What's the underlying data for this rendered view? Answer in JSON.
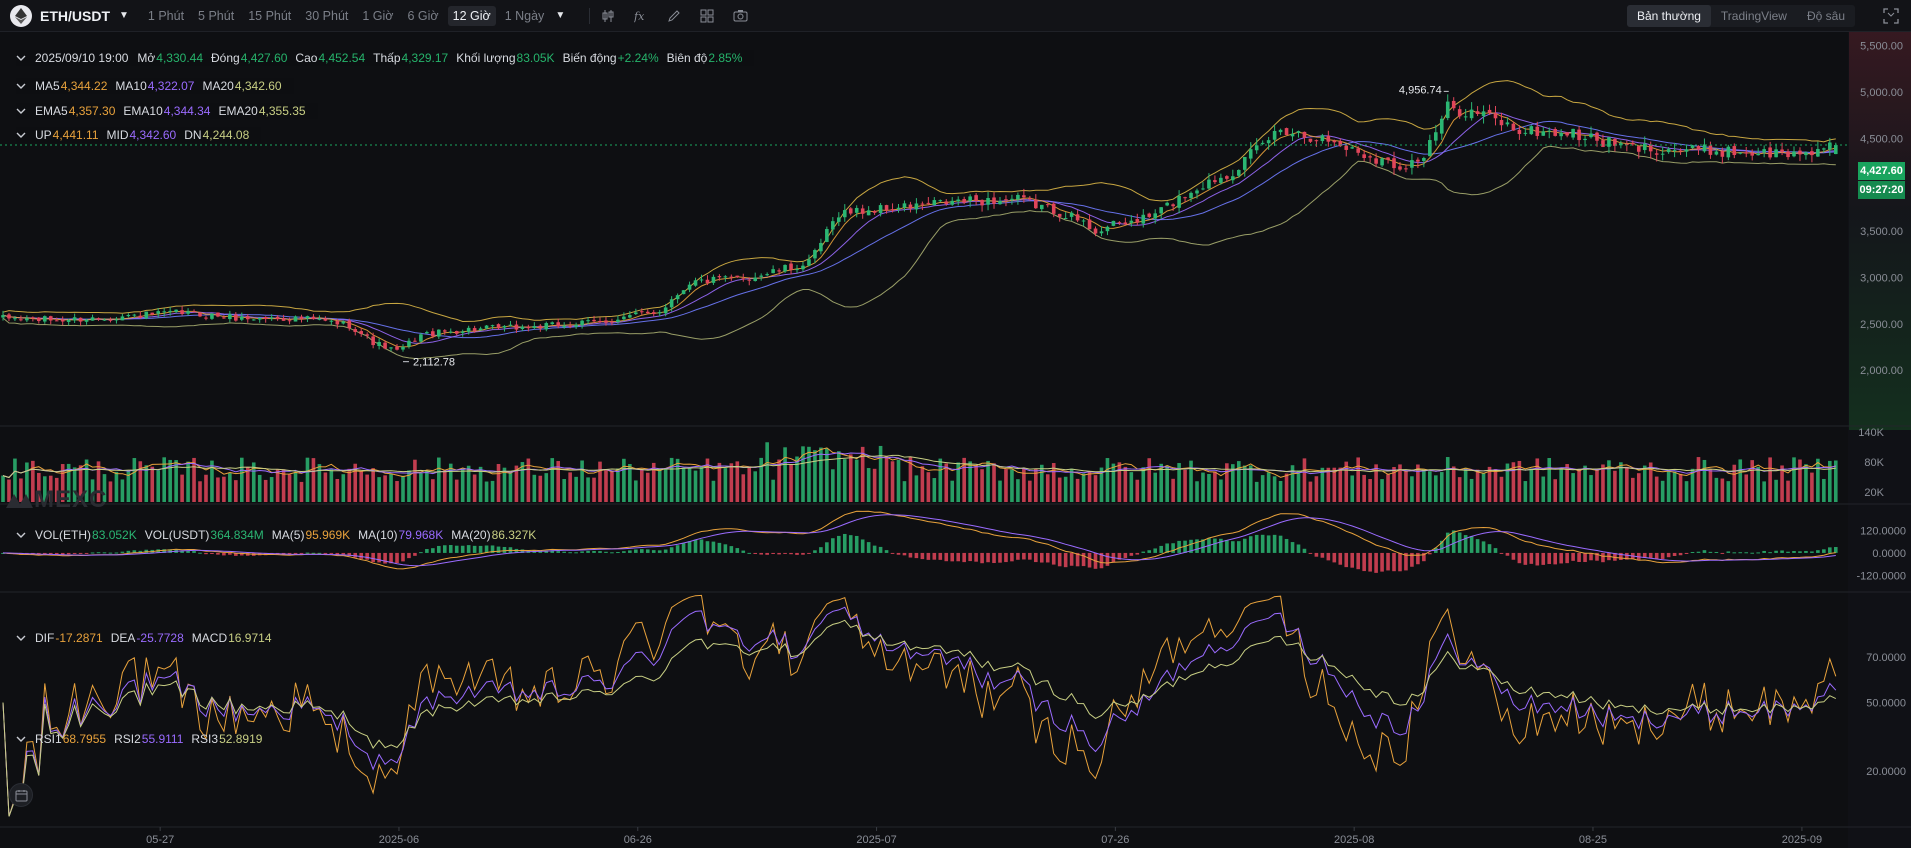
{
  "toolbar": {
    "symbol": "ETH/USDT",
    "intervals": [
      "1 Phút",
      "5 Phút",
      "15 Phút",
      "30 Phút",
      "1 Giờ",
      "6 Giờ",
      "12 Giờ",
      "1 Ngày"
    ],
    "active_interval": "12 Giờ",
    "tool_icons": [
      "candle-type-icon",
      "indicator-icon",
      "draw-icon",
      "layout-icon",
      "camera-icon"
    ],
    "views": [
      "Bản thường",
      "TradingView",
      "Độ sâu"
    ],
    "active_view": "Bản thường"
  },
  "ohlc": {
    "date": "2025/09/10 19:00",
    "open_label": "Mở",
    "open": "4,330.44",
    "close_label": "Đóng",
    "close": "4,427.60",
    "high_label": "Cao",
    "high": "4,452.54",
    "low_label": "Thấp",
    "low": "4,329.17",
    "volume_label": "Khối lượng",
    "volume": "83.05K",
    "change_label": "Biến động",
    "change": "+2.24%",
    "amplitude_label": "Biên độ",
    "amplitude": "2.85%"
  },
  "ma": {
    "ma5_label": "MA5",
    "ma5": "4,344.22",
    "ma10_label": "MA10",
    "ma10": "4,322.07",
    "ma20_label": "MA20",
    "ma20": "4,342.60"
  },
  "ema": {
    "ema5_label": "EMA5",
    "ema5": "4,357.30",
    "ema10_label": "EMA10",
    "ema10": "4,344.34",
    "ema20_label": "EMA20",
    "ema20": "4,355.35"
  },
  "boll": {
    "up_label": "UP",
    "up": "4,441.11",
    "mid_label": "MID",
    "mid": "4,342.60",
    "dn_label": "DN",
    "dn": "4,244.08"
  },
  "vol": {
    "eth_label": "VOL(ETH)",
    "eth": "83.052K",
    "usdt_label": "VOL(USDT)",
    "usdt": "364.834M",
    "ma5_label": "MA(5)",
    "ma5": "95.969K",
    "ma10_label": "MA(10)",
    "ma10": "79.968K",
    "ma20_label": "MA(20)",
    "ma20": "86.327K"
  },
  "macd": {
    "dif_label": "DIF",
    "dif": "-17.2871",
    "dea_label": "DEA",
    "dea": "-25.7728",
    "macd_label": "MACD",
    "macd": "16.9714"
  },
  "rsi": {
    "rsi1_label": "RSI1",
    "rsi1": "68.7955",
    "rsi2_label": "RSI2",
    "rsi2": "55.9111",
    "rsi3_label": "RSI3",
    "rsi3": "52.8919"
  },
  "price_tag": {
    "price": "4,427.60",
    "countdown": "09:27:20"
  },
  "watermark": "MEXC",
  "colors": {
    "up": "#2bb673",
    "down": "#e0455a",
    "ma5": "#e8a23c",
    "ma10": "#9a6bff",
    "ma20": "#c8cf84",
    "boll": "#e8c14a"
  },
  "chart_data": {
    "type": "candlestick",
    "x_ticks": [
      "05-27",
      "2025-06",
      "06-26",
      "2025-07",
      "07-26",
      "2025-08",
      "08-25",
      "2025-09"
    ],
    "price_axis": {
      "ticks": [
        "5,500.00",
        "5,000.00",
        "4,500.00",
        "4,000.00",
        "3,500.00",
        "3,000.00",
        "2,500.00",
        "2,000.00"
      ],
      "range": [
        1420,
        5560
      ]
    },
    "annotations": {
      "max": "4,956.74",
      "min": "2,112.78"
    },
    "close_path": [
      [
        0,
        2560
      ],
      [
        10,
        2540
      ],
      [
        20,
        2580
      ],
      [
        30,
        2620
      ],
      [
        40,
        2560
      ],
      [
        50,
        2560
      ],
      [
        58,
        2490
      ],
      [
        62,
        2300
      ],
      [
        66,
        2200
      ],
      [
        70,
        2380
      ],
      [
        78,
        2440
      ],
      [
        90,
        2470
      ],
      [
        100,
        2520
      ],
      [
        110,
        2640
      ],
      [
        115,
        2950
      ],
      [
        125,
        3000
      ],
      [
        135,
        3150
      ],
      [
        140,
        3700
      ],
      [
        150,
        3750
      ],
      [
        160,
        3820
      ],
      [
        170,
        3840
      ],
      [
        178,
        3690
      ],
      [
        183,
        3510
      ],
      [
        192,
        3650
      ],
      [
        200,
        3970
      ],
      [
        206,
        4150
      ],
      [
        214,
        4610
      ],
      [
        222,
        4480
      ],
      [
        228,
        4330
      ],
      [
        234,
        4200
      ],
      [
        238,
        4300
      ],
      [
        242,
        4830
      ],
      [
        248,
        4760
      ],
      [
        254,
        4580
      ],
      [
        262,
        4560
      ],
      [
        272,
        4400
      ],
      [
        285,
        4370
      ],
      [
        300,
        4330
      ],
      [
        307,
        4427.6
      ]
    ],
    "volume": {
      "ticks": [
        "140K",
        "80K",
        "20K"
      ],
      "range": [
        0,
        160
      ]
    },
    "macd": {
      "ticks": [
        "120.0000",
        "0.0000",
        "-120.0000"
      ],
      "range": [
        -210,
        220
      ]
    },
    "rsi": {
      "ticks": [
        "70.0000",
        "50.0000",
        "20.0000"
      ],
      "range": [
        5,
        95
      ]
    }
  }
}
